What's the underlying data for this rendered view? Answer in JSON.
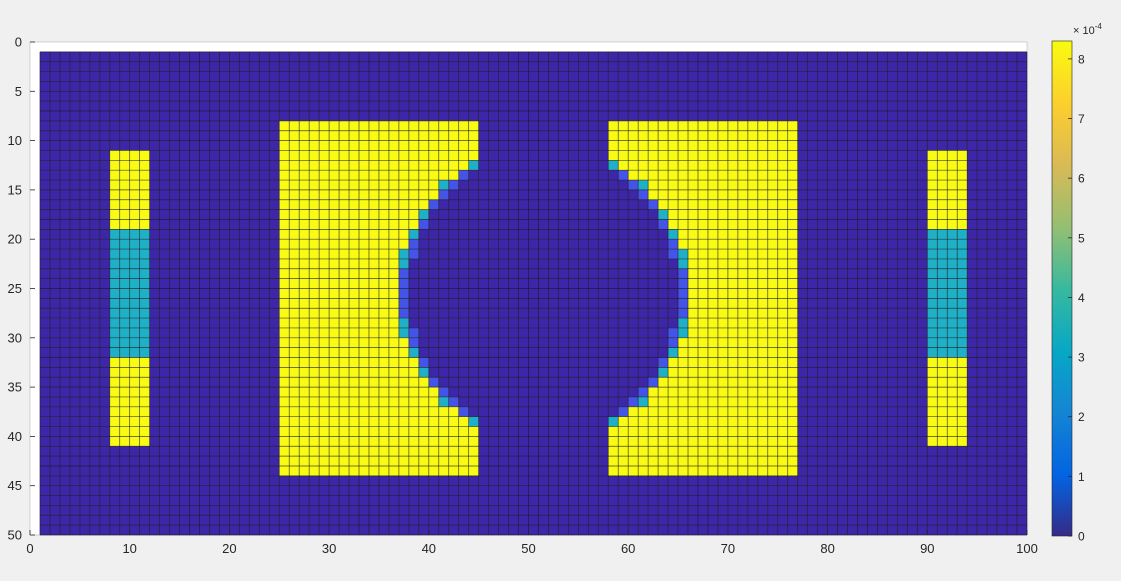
{
  "chart_data": {
    "type": "heatmap",
    "title": "",
    "xlabel": "",
    "ylabel": "",
    "grid_cols": 100,
    "grid_rows": 50,
    "xlim": [
      0,
      100
    ],
    "ylim": [
      0,
      50
    ],
    "y_direction": "reverse",
    "grid": "on",
    "x_ticks": [
      0,
      10,
      20,
      30,
      40,
      50,
      60,
      70,
      80,
      90,
      100
    ],
    "y_ticks": [
      0,
      5,
      10,
      15,
      20,
      25,
      30,
      35,
      40,
      45,
      50
    ],
    "values_note": "",
    "value_levels": {
      "background": 0,
      "edge_low": 1.2,
      "edge_mid": 3.5,
      "high": 8.3
    },
    "regions": [
      {
        "level": "high",
        "x": [
          8,
          11
        ],
        "y": [
          11,
          40
        ]
      },
      {
        "level": "edge_mid",
        "x": [
          8,
          11
        ],
        "y": [
          19,
          31
        ]
      },
      {
        "level": "high",
        "x": [
          90,
          93
        ],
        "y": [
          11,
          40
        ]
      },
      {
        "level": "edge_mid",
        "x": [
          90,
          93
        ],
        "y": [
          19,
          31
        ]
      },
      {
        "level": "high",
        "x": [
          25,
          44
        ],
        "y": [
          8,
          43
        ]
      },
      {
        "level": "high",
        "x": [
          58,
          76
        ],
        "y": [
          8,
          43
        ]
      }
    ],
    "ellipse": {
      "cx": 51.5,
      "cy": 25.5,
      "rx": 14.6,
      "ry": 15.2
    },
    "colorbar": {
      "min": 0,
      "max": 8.3,
      "ticks": [
        0,
        1,
        2,
        3,
        4,
        5,
        6,
        7,
        8
      ],
      "exponent_label": "× 10",
      "exponent_power": "-4",
      "colormap": "parula"
    },
    "colors": {
      "background": "#3e26a8",
      "edge_low": "#4454e8",
      "edge_mid": "#1fb0c8",
      "high": "#f9fb15",
      "gridline": "#1a1a1a",
      "figure_bg": "#f0f0f0"
    }
  }
}
